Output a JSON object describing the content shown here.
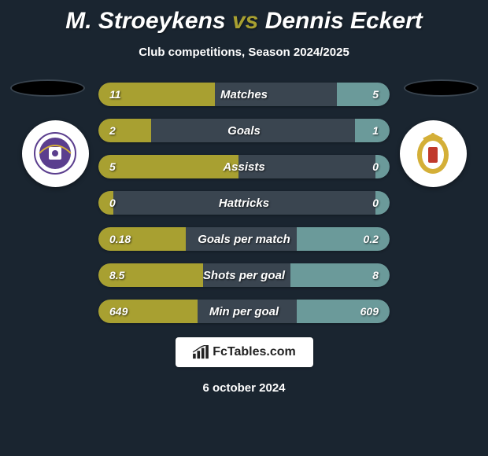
{
  "title": {
    "player1": "M. Stroeykens",
    "vs": "vs",
    "player2": "Dennis Eckert"
  },
  "subtitle": "Club competitions, Season 2024/2025",
  "colors": {
    "bar_left": "#a8a031",
    "bar_right": "#6b9a9a",
    "bar_mid": "#3a4550",
    "background": "#1a2530"
  },
  "stats": [
    {
      "label": "Matches",
      "left_val": "11",
      "right_val": "5",
      "left_pct": 40,
      "right_pct": 18
    },
    {
      "label": "Goals",
      "left_val": "2",
      "right_val": "1",
      "left_pct": 18,
      "right_pct": 12
    },
    {
      "label": "Assists",
      "left_val": "5",
      "right_val": "0",
      "left_pct": 48,
      "right_pct": 5
    },
    {
      "label": "Hattricks",
      "left_val": "0",
      "right_val": "0",
      "left_pct": 5,
      "right_pct": 5
    },
    {
      "label": "Goals per match",
      "left_val": "0.18",
      "right_val": "0.2",
      "left_pct": 30,
      "right_pct": 32
    },
    {
      "label": "Shots per goal",
      "left_val": "8.5",
      "right_val": "8",
      "left_pct": 36,
      "right_pct": 34
    },
    {
      "label": "Min per goal",
      "left_val": "649",
      "right_val": "609",
      "left_pct": 34,
      "right_pct": 32
    }
  ],
  "brand": "FcTables.com",
  "date": "6 october 2024",
  "badges": {
    "left_fill": "#5b3e8e",
    "right_fill": "#d4af37"
  }
}
